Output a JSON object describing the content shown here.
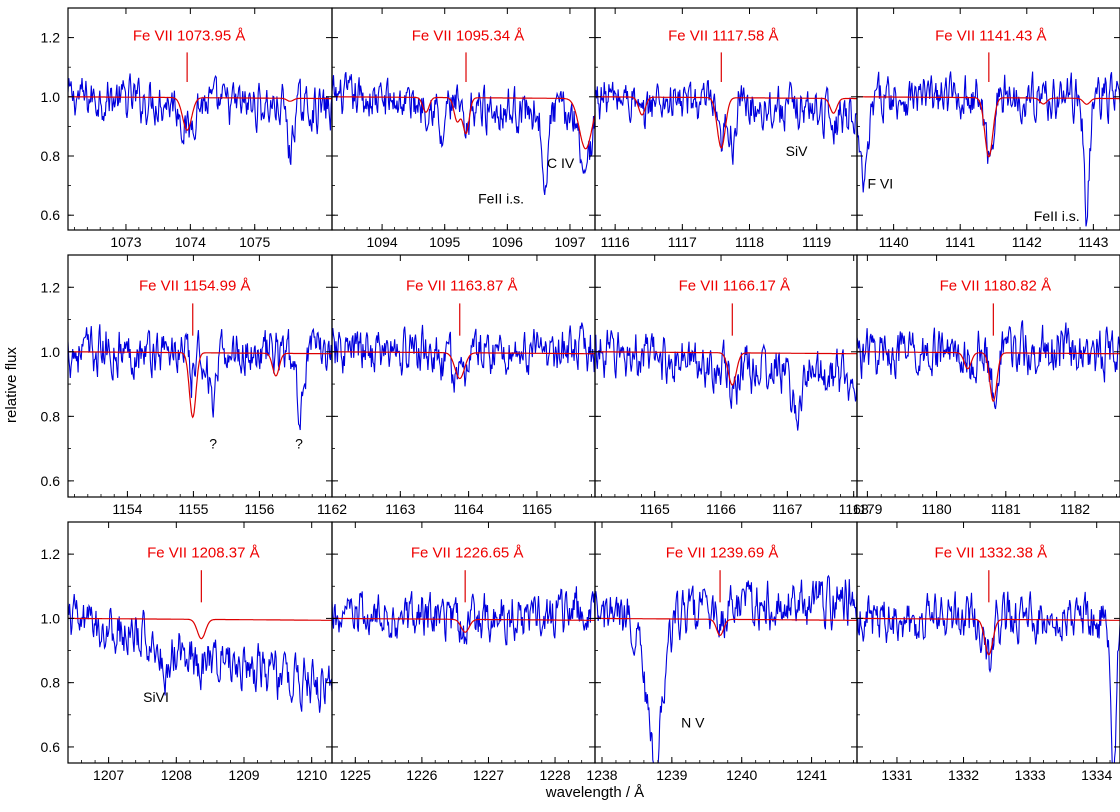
{
  "chart_data": {
    "type": "line",
    "grid": false,
    "shared_ylabel": "relative flux",
    "shared_xlabel": "wavelength / Å",
    "ylim": [
      0.55,
      1.3
    ],
    "yticks": [
      0.6,
      0.8,
      1.0,
      1.2
    ],
    "ytick_labels": [
      "0.6",
      "0.8",
      "1.0",
      "1.2"
    ],
    "colors": {
      "observed": "#0000dd",
      "model": "#dd0000",
      "label": "#ee0000",
      "frame": "#000000"
    },
    "series_roles": [
      "observed",
      "model"
    ],
    "panels": [
      {
        "title": "Fe VII 1073.95 Å",
        "line_center": 1073.95,
        "xlim": [
          1072.1,
          1076.2
        ],
        "xticks": [
          1073,
          1074,
          1075
        ],
        "xtick_labels": [
          "1073",
          "1074",
          "1075"
        ],
        "model_dips": [
          [
            1073.95,
            0.11,
            0.07
          ],
          [
            1075.55,
            0.01,
            0.05
          ]
        ],
        "observed_dips": [
          [
            1073.95,
            0.1,
            0.08
          ],
          [
            1075.55,
            0.16,
            0.04
          ]
        ],
        "observed_slope": -0.04,
        "annotations": []
      },
      {
        "title": "Fe VII 1095.34 Å",
        "line_center": 1095.34,
        "xlim": [
          1093.2,
          1097.4
        ],
        "xticks": [
          1094,
          1095,
          1096,
          1097
        ],
        "xtick_labels": [
          "1094",
          "1095",
          "1096",
          "1097"
        ],
        "model_dips": [
          [
            1094.7,
            0.05,
            0.05
          ],
          [
            1095.2,
            0.08,
            0.05
          ],
          [
            1095.34,
            0.12,
            0.05
          ],
          [
            1097.25,
            0.17,
            0.1
          ]
        ],
        "observed_dips": [
          [
            1094.95,
            0.14,
            0.04
          ],
          [
            1095.34,
            0.12,
            0.05
          ],
          [
            1096.6,
            0.33,
            0.04
          ],
          [
            1097.25,
            0.18,
            0.08
          ]
        ],
        "observed_slope": -0.06,
        "annotations": [
          {
            "text": "C IV",
            "x": 1096.85,
            "y": 0.76
          },
          {
            "text": "FeII i.s.",
            "x": 1095.9,
            "y": 0.64
          }
        ]
      },
      {
        "title": "Fe VII 1117.58 Å",
        "line_center": 1117.58,
        "xlim": [
          1115.7,
          1119.6
        ],
        "xticks": [
          1116,
          1117,
          1118,
          1119
        ],
        "xtick_labels": [
          "1116",
          "1117",
          "1118",
          "1119"
        ],
        "model_dips": [
          [
            1116.4,
            0.06,
            0.05
          ],
          [
            1117.58,
            0.17,
            0.06
          ],
          [
            1119.25,
            0.05,
            0.05
          ]
        ],
        "observed_dips": [
          [
            1116.4,
            0.08,
            0.05
          ],
          [
            1117.58,
            0.15,
            0.06
          ],
          [
            1117.75,
            0.12,
            0.04
          ],
          [
            1119.25,
            0.05,
            0.05
          ]
        ],
        "observed_slope": -0.05,
        "annotations": [
          {
            "text": "SiV",
            "x": 1118.7,
            "y": 0.8
          }
        ]
      },
      {
        "title": "Fe VII 1141.43 Å",
        "line_center": 1141.43,
        "xlim": [
          1139.45,
          1143.4
        ],
        "xticks": [
          1140,
          1141,
          1142,
          1143
        ],
        "xtick_labels": [
          "1140",
          "1141",
          "1142",
          "1143"
        ],
        "model_dips": [
          [
            1141.43,
            0.2,
            0.06
          ],
          [
            1142.25,
            0.02,
            0.05
          ],
          [
            1142.9,
            0.02,
            0.05
          ]
        ],
        "observed_dips": [
          [
            1139.55,
            0.3,
            0.07
          ],
          [
            1141.43,
            0.19,
            0.06
          ],
          [
            1142.9,
            0.4,
            0.04
          ]
        ],
        "observed_slope": 0.0,
        "annotations": [
          {
            "text": "F VI",
            "x": 1139.8,
            "y": 0.69
          },
          {
            "text": "FeII i.s.",
            "x": 1142.45,
            "y": 0.58
          }
        ]
      },
      {
        "title": "Fe VII 1154.99 Å",
        "line_center": 1154.99,
        "xlim": [
          1153.1,
          1157.1
        ],
        "xticks": [
          1154,
          1155,
          1156
        ],
        "xtick_labels": [
          "1154",
          "1155",
          "1156"
        ],
        "model_dips": [
          [
            1154.99,
            0.2,
            0.05
          ],
          [
            1156.25,
            0.07,
            0.05
          ]
        ],
        "observed_dips": [
          [
            1154.99,
            0.08,
            0.05
          ],
          [
            1155.3,
            0.17,
            0.06
          ],
          [
            1156.6,
            0.16,
            0.06
          ]
        ],
        "observed_slope": 0.0,
        "annotations": [
          {
            "text": "?",
            "x": 1155.3,
            "y": 0.7
          },
          {
            "text": "?",
            "x": 1156.6,
            "y": 0.7
          }
        ]
      },
      {
        "title": "Fe VII 1163.87 Å",
        "line_center": 1163.87,
        "xlim": [
          1162.0,
          1165.85
        ],
        "xticks": [
          1162,
          1163,
          1164,
          1165
        ],
        "xtick_labels": [
          "1162",
          "1163",
          "1164",
          "1165"
        ],
        "model_dips": [
          [
            1163.87,
            0.08,
            0.07
          ]
        ],
        "observed_dips": [
          [
            1163.87,
            0.1,
            0.07
          ],
          [
            1163.6,
            0.06,
            0.05
          ]
        ],
        "observed_slope": 0.0,
        "annotations": []
      },
      {
        "title": "Fe VII 1166.17 Å",
        "line_center": 1166.17,
        "xlim": [
          1164.1,
          1168.05
        ],
        "xticks": [
          1165,
          1166,
          1167,
          1168
        ],
        "xtick_labels": [
          "1165",
          "1166",
          "1167",
          "1168"
        ],
        "model_dips": [
          [
            1166.17,
            0.1,
            0.06
          ]
        ],
        "observed_dips": [
          [
            1166.17,
            0.1,
            0.06
          ],
          [
            1167.15,
            0.12,
            0.08
          ]
        ],
        "observed_slope": -0.08,
        "annotations": []
      },
      {
        "title": "Fe VII 1180.82 Å",
        "line_center": 1180.82,
        "xlim": [
          1178.85,
          1182.65
        ],
        "xticks": [
          1179,
          1180,
          1181,
          1182
        ],
        "xtick_labels": [
          "1179",
          "1180",
          "1181",
          "1182"
        ],
        "model_dips": [
          [
            1180.45,
            0.05,
            0.05
          ],
          [
            1180.82,
            0.15,
            0.05
          ]
        ],
        "observed_dips": [
          [
            1180.82,
            0.12,
            0.05
          ],
          [
            1180.5,
            0.06,
            0.05
          ]
        ],
        "observed_slope": 0.0,
        "annotations": []
      },
      {
        "title": "Fe VII 1208.37 Å",
        "line_center": 1208.37,
        "xlim": [
          1206.4,
          1210.3
        ],
        "xticks": [
          1207,
          1208,
          1209,
          1210
        ],
        "xtick_labels": [
          "1207",
          "1208",
          "1209",
          "1210"
        ],
        "model_dips": [
          [
            1208.37,
            0.06,
            0.06
          ]
        ],
        "observed_dips": [
          [
            1207.85,
            0.1,
            0.06
          ],
          [
            1208.37,
            0.05,
            0.05
          ]
        ],
        "observed_slope": -0.22,
        "annotations": [
          {
            "text": "SiVI",
            "x": 1207.7,
            "y": 0.74
          }
        ]
      },
      {
        "title": "Fe VII 1226.65 Å",
        "line_center": 1226.65,
        "xlim": [
          1224.65,
          1228.6
        ],
        "xticks": [
          1225,
          1226,
          1227,
          1228
        ],
        "xtick_labels": [
          "1225",
          "1226",
          "1227",
          "1228"
        ],
        "model_dips": [
          [
            1226.65,
            0.04,
            0.06
          ]
        ],
        "observed_dips": [
          [
            1226.65,
            0.06,
            0.06
          ]
        ],
        "observed_slope": 0.02,
        "annotations": []
      },
      {
        "title": "Fe VII 1239.69 Å",
        "line_center": 1239.69,
        "xlim": [
          1237.9,
          1241.65
        ],
        "xticks": [
          1238,
          1239,
          1240,
          1241
        ],
        "xtick_labels": [
          "1238",
          "1239",
          "1240",
          "1241"
        ],
        "model_dips": [
          [
            1239.69,
            0.05,
            0.05
          ]
        ],
        "observed_dips": [
          [
            1238.75,
            0.45,
            0.12
          ],
          [
            1239.69,
            0.06,
            0.05
          ]
        ],
        "observed_slope": 0.06,
        "annotations": [
          {
            "text": "N V",
            "x": 1239.3,
            "y": 0.66
          }
        ]
      },
      {
        "title": "Fe VII 1332.38 Å",
        "line_center": 1332.38,
        "xlim": [
          1330.4,
          1334.35
        ],
        "xticks": [
          1331,
          1332,
          1333,
          1334
        ],
        "xtick_labels": [
          "1331",
          "1332",
          "1333",
          "1334"
        ],
        "model_dips": [
          [
            1332.38,
            0.11,
            0.06
          ]
        ],
        "observed_dips": [
          [
            1332.38,
            0.13,
            0.06
          ],
          [
            1334.25,
            0.5,
            0.04
          ]
        ],
        "observed_slope": 0.0,
        "annotations": []
      }
    ]
  }
}
